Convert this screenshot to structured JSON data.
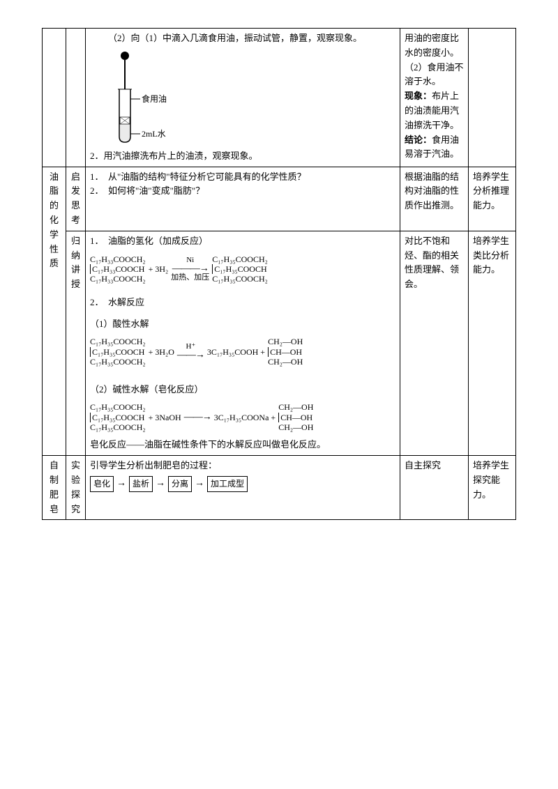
{
  "row1": {
    "c3_line1": "（2）向（1）中滴入几滴食用油，振动试管，静置，观察现象。",
    "tube_label_top": "食用油",
    "tube_label_bot": "2mL水",
    "c3_line2": "2．用汽油擦洗布片上的油渍，观察现象。",
    "c4_a": "用油的密度比水的密度小。",
    "c4_b": "（2）食用油不溶于水。",
    "c4_c_label": "现象：",
    "c4_c": "布片上的油渍能用汽油擦洗干净。",
    "c4_d_label": "结论：",
    "c4_d": "食用油易溶于汽油。"
  },
  "row2": {
    "c1": "油脂的化学性质",
    "c2": "启发思考",
    "c3_q1": "1．　从\"油脂的结构\"特征分析它可能具有的化学性质？",
    "c3_q2": "2．　如何将\"油\"变成\"脂肪\"？",
    "c4": "根据油脂的结构对油脂的性质作出推测。",
    "c5": "培养学生分析推理能力。"
  },
  "row3": {
    "c2": "归纳讲授",
    "c3_h1": "1．　油脂的氢化（加成反应）",
    "eq1": {
      "l1": "C₁₇H₃₃COOCH₂",
      "l2": "C₁₇H₃₃COOCH",
      "l3": "C₁₇H₃₃COOCH₂",
      "plus": " + 3H₂",
      "cond_top": "Ni",
      "cond_bot": "加热、加压",
      "r1": "C₁₇H₃₅COOCH₂",
      "r2": "C₁₇H₃₅COOCH",
      "r3": "C₁₇H₃₅COOCH₂"
    },
    "c3_h2": "2．　水解反应",
    "c3_h2a": "（1）酸性水解",
    "eq2": {
      "l1": "C₁₇H₃₅COOCH₂",
      "l2": "C₁₇H₃₅COOCH",
      "l3": "C₁₇H₃₅COOCH₂",
      "plus": " + 3H₂O",
      "cond_top": "H⁺",
      "prod1": "3C₁₇H₃₅COOH + ",
      "g1": "CH₂—OH",
      "g2": "CH—OH",
      "g3": "CH₂—OH"
    },
    "c3_h2b": "（2）碱性水解（皂化反应）",
    "eq3": {
      "l1": "C₁₇H₃₅COOCH₂",
      "l2": "C₁₇H₃₅COOCH",
      "l3": "C₁₇H₃₅COOCH₂",
      "plus": " + 3NaOH ",
      "prod1": " 3C₁₇H₃₅COONa + ",
      "g1": "CH₂—OH",
      "g2": "CH—OH",
      "g3": "CH₂—OH"
    },
    "c3_def": "皂化反应——油脂在碱性条件下的水解反应叫做皂化反应。",
    "c4": "对比不饱和烃、酯的相关性质理解、领会。",
    "c5": "培养学生类比分析能力。"
  },
  "row4": {
    "c1": "自制肥皂",
    "c2": "实验探究",
    "c3_intro": "引导学生分析出制肥皂的过程：",
    "flow": [
      "皂化",
      "盐析",
      "分离",
      "加工成型"
    ],
    "c4": "自主探究",
    "c5": "培养学生探究能力。"
  }
}
